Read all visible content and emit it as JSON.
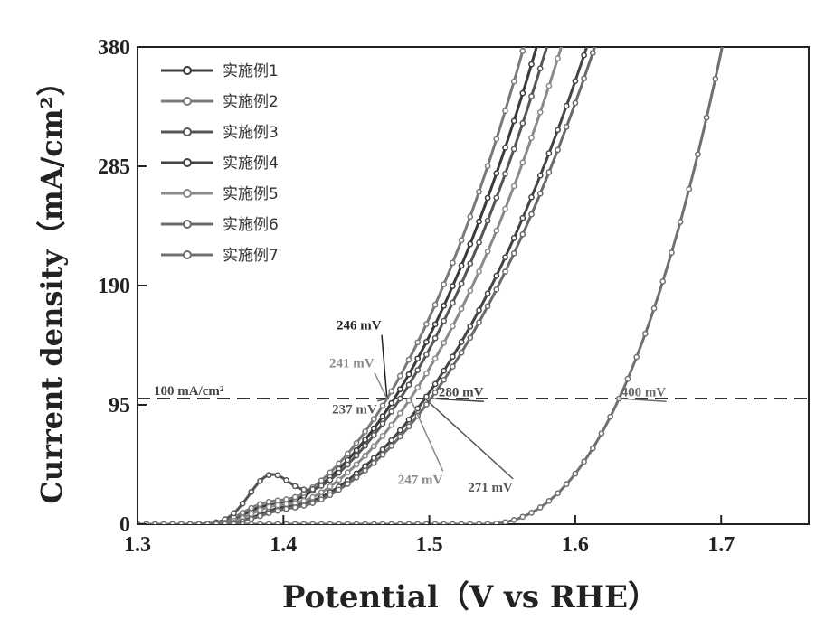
{
  "chart_data": {
    "type": "line",
    "xlabel": "Potential（V vs RHE）",
    "ylabel": "Current density（mA/cm²）",
    "xlim": [
      1.3,
      1.76
    ],
    "ylim": [
      0,
      380
    ],
    "xticks": [
      "1.3",
      "1.4",
      "1.5",
      "1.6",
      "1.7"
    ],
    "yticks": [
      "0",
      "95",
      "190",
      "285",
      "380"
    ],
    "legend_position": "top-left",
    "reference_line": {
      "y": 100,
      "label": "100 mA/cm²",
      "style": "dashed"
    },
    "series": [
      {
        "name": "实施例1",
        "color": "#3a3a3a",
        "onset": 1.345,
        "x100": 1.476,
        "peak_x": 1.385,
        "peak_y": 8,
        "marker": "circle"
      },
      {
        "name": "实施例2",
        "color": "#7a7a7a",
        "onset": 1.345,
        "x100": 1.471,
        "peak_x": 1.385,
        "peak_y": 10,
        "marker": "circle"
      },
      {
        "name": "实施例3",
        "color": "#555555",
        "onset": 1.345,
        "x100": 1.48,
        "peak_x": 1.39,
        "peak_y": 32,
        "marker": "circle"
      },
      {
        "name": "实施例4",
        "color": "#444444",
        "onset": 1.348,
        "x100": 1.497,
        "peak_x": 1.395,
        "peak_y": 6,
        "marker": "circle"
      },
      {
        "name": "实施例5",
        "color": "#8a8a8a",
        "onset": 1.348,
        "x100": 1.487,
        "peak_x": 1.39,
        "peak_y": 8,
        "marker": "circle"
      },
      {
        "name": "实施例6",
        "color": "#6a6a6a",
        "onset": 1.35,
        "x100": 1.501,
        "peak_x": 1.395,
        "peak_y": 5,
        "marker": "circle"
      },
      {
        "name": "实施例7",
        "color": "#707070",
        "onset": 1.535,
        "x100": 1.63,
        "peak_x": 1.56,
        "peak_y": 0,
        "marker": "circle"
      }
    ],
    "annotations": [
      {
        "text": "246 mV",
        "color": "#222222",
        "x": 1.455,
        "y": 155
      },
      {
        "text": "241 mV",
        "color": "#8a8a8a",
        "x": 1.45,
        "y": 125
      },
      {
        "text": "237 mV",
        "color": "#555555",
        "x": 1.452,
        "y": 88
      },
      {
        "text": "280 mV",
        "color": "#444444",
        "x": 1.525,
        "y": 102
      },
      {
        "text": "247 mV",
        "color": "#8a8a8a",
        "x": 1.497,
        "y": 32
      },
      {
        "text": "271 mV",
        "color": "#555555",
        "x": 1.545,
        "y": 26
      },
      {
        "text": "400 mV",
        "color": "#6a6a6a",
        "x": 1.65,
        "y": 102
      }
    ]
  }
}
